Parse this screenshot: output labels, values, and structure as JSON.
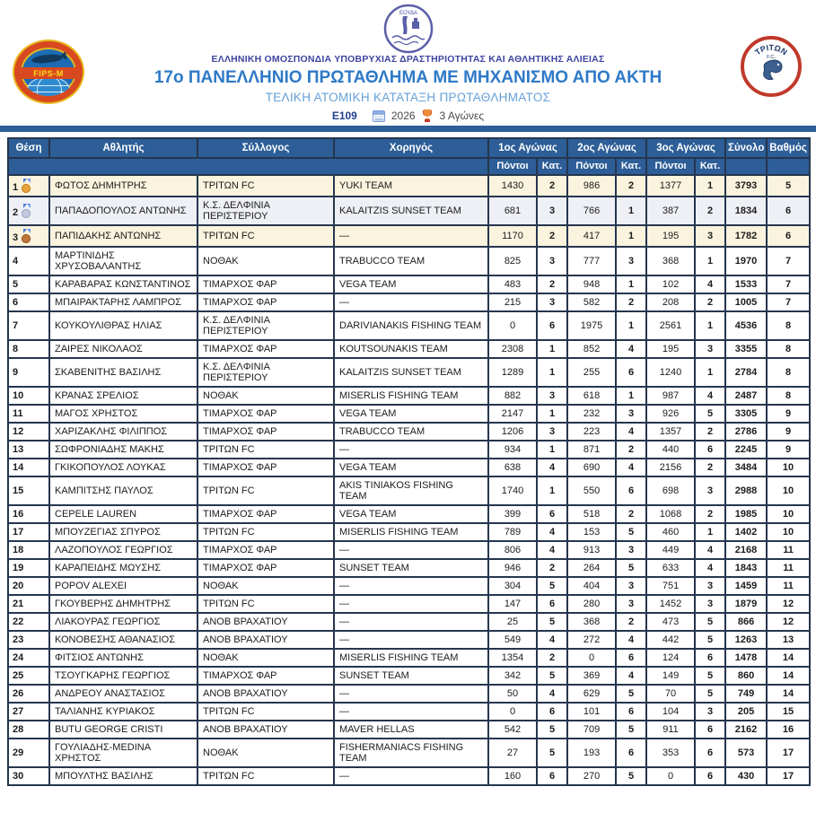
{
  "header": {
    "federation": "ΕΛΛΗΝΙΚΗ ΟΜΟΣΠΟΝΔΙΑ ΥΠΟΒΡΥΧΙΑΣ ΔΡΑΣΤΗΡΙΟΤΗΤΑΣ ΚΑΙ ΑΘΛΗΤΙΚΗΣ ΑΛΙΕΙΑΣ",
    "title": "17ο ΠΑΝΕΛΛΗΝΙΟ ΠΡΩΤΑΘΛΗΜΑ ΜΕ ΜΗΧΑΝΙΣΜΟ ΑΠΟ ΑΚΤΗ",
    "subtitle": "ΤΕΛΙΚΗ ΑΤΟΜΙΚΗ ΚΑΤΑΤΑΞΗ ΠΡΩΤΑΘΛΗΜΑΤΟΣ",
    "code": "E109",
    "year": "2026",
    "races": "3 Αγώνες",
    "logo_left_text": "FIPS-M",
    "logo_right_top": "ΤΡΙΤΩΝ",
    "logo_right_sub": "F.C."
  },
  "colors": {
    "header_blue": "#2d5e97",
    "title_blue": "#2e79c7",
    "subtitle_blue": "#64a0d8",
    "federation_indigo": "#3f45a0",
    "row_beige": "#faf3de",
    "row_gray": "#eef0f6",
    "border_dark": "#25364e"
  },
  "table": {
    "head": {
      "pos": "Θέση",
      "athlete": "Αθλητής",
      "club": "Σύλλογος",
      "sponsor": "Χορηγός",
      "race1": "1ος Αγώνας",
      "race2": "2ος Αγώνας",
      "race3": "3ος Αγώνας",
      "total": "Σύνολο",
      "grade": "Βαθμός",
      "points": "Πόντοι",
      "cat": "Κατ."
    },
    "rows": [
      {
        "pos": 1,
        "medal": "gold",
        "name": "ΦΩΤΟΣ ΔΗΜΗΤΡΗΣ",
        "club": "ΤΡΙΤΩΝ FC",
        "sponsor": "YUKI TEAM",
        "p1": 1430,
        "k1": 2,
        "p2": 986,
        "k2": 2,
        "p3": 1377,
        "k3": 1,
        "total": 3793,
        "grade": 5
      },
      {
        "pos": 2,
        "medal": "silver",
        "name": "ΠΑΠΑΔΟΠΟΥΛΟΣ ΑΝΤΩΝΗΣ",
        "club": "Κ.Σ. ΔΕΛΦΙΝΙΑ ΠΕΡΙΣΤΕΡΙΟΥ",
        "sponsor": "KALAITZIS SUNSET TEAM",
        "p1": 681,
        "k1": 3,
        "p2": 766,
        "k2": 1,
        "p3": 387,
        "k3": 2,
        "total": 1834,
        "grade": 6
      },
      {
        "pos": 3,
        "medal": "bronze",
        "name": "ΠΑΠΙΔΑΚΗΣ ΑΝΤΩΝΗΣ",
        "club": "ΤΡΙΤΩΝ FC",
        "sponsor": "—",
        "p1": 1170,
        "k1": 2,
        "p2": 417,
        "k2": 1,
        "p3": 195,
        "k3": 3,
        "total": 1782,
        "grade": 6
      },
      {
        "pos": 4,
        "medal": null,
        "name": "ΜΑΡΤΙΝΙΔΗΣ ΧΡΥΣΟΒΑΛΑΝΤΗΣ",
        "club": "ΝΟΘΑΚ",
        "sponsor": "TRABUCCO TEAM",
        "p1": 825,
        "k1": 3,
        "p2": 777,
        "k2": 3,
        "p3": 368,
        "k3": 1,
        "total": 1970,
        "grade": 7
      },
      {
        "pos": 5,
        "medal": null,
        "name": "ΚΑΡΑΒΑΡΑΣ ΚΩΝΣΤΑΝΤΙΝΟΣ",
        "club": "ΤΙΜΑΡΧΟΣ ΦΑΡ",
        "sponsor": "VEGA TEAM",
        "p1": 483,
        "k1": 2,
        "p2": 948,
        "k2": 1,
        "p3": 102,
        "k3": 4,
        "total": 1533,
        "grade": 7
      },
      {
        "pos": 6,
        "medal": null,
        "name": "ΜΠΑΙΡΑΚΤΑΡΗΣ ΛΑΜΠΡΟΣ",
        "club": "ΤΙΜΑΡΧΟΣ ΦΑΡ",
        "sponsor": "—",
        "p1": 215,
        "k1": 3,
        "p2": 582,
        "k2": 2,
        "p3": 208,
        "k3": 2,
        "total": 1005,
        "grade": 7
      },
      {
        "pos": 7,
        "medal": null,
        "name": "ΚΟΥΚΟΥΛΙΘΡΑΣ ΗΛΙΑΣ",
        "club": "Κ.Σ. ΔΕΛΦΙΝΙΑ ΠΕΡΙΣΤΕΡΙΟΥ",
        "sponsor": "DARIVIANAKIS FISHING TEAM",
        "p1": 0,
        "k1": 6,
        "p2": 1975,
        "k2": 1,
        "p3": 2561,
        "k3": 1,
        "total": 4536,
        "grade": 8
      },
      {
        "pos": 8,
        "medal": null,
        "name": "ΖΑΙΡΕΣ ΝΙΚΟΛΑΟΣ",
        "club": "ΤΙΜΑΡΧΟΣ ΦΑΡ",
        "sponsor": "KOUTSOUNAKIS TEAM",
        "p1": 2308,
        "k1": 1,
        "p2": 852,
        "k2": 4,
        "p3": 195,
        "k3": 3,
        "total": 3355,
        "grade": 8
      },
      {
        "pos": 9,
        "medal": null,
        "name": "ΣΚΑΒΕΝΙΤΗΣ ΒΑΣΙΛΗΣ",
        "club": "Κ.Σ. ΔΕΛΦΙΝΙΑ ΠΕΡΙΣΤΕΡΙΟΥ",
        "sponsor": "KALAITZIS SUNSET TEAM",
        "p1": 1289,
        "k1": 1,
        "p2": 255,
        "k2": 6,
        "p3": 1240,
        "k3": 1,
        "total": 2784,
        "grade": 8
      },
      {
        "pos": 10,
        "medal": null,
        "name": "ΚΡΑΝΑΣ ΣΡΕΛΙΟΣ",
        "club": "ΝΟΘΑΚ",
        "sponsor": "MISERLIS FISHING TEAM",
        "p1": 882,
        "k1": 3,
        "p2": 618,
        "k2": 1,
        "p3": 987,
        "k3": 4,
        "total": 2487,
        "grade": 8
      },
      {
        "pos": 11,
        "medal": null,
        "name": "ΜΑΓΟΣ ΧΡΗΣΤΟΣ",
        "club": "ΤΙΜΑΡΧΟΣ ΦΑΡ",
        "sponsor": "VEGA TEAM",
        "p1": 2147,
        "k1": 1,
        "p2": 232,
        "k2": 3,
        "p3": 926,
        "k3": 5,
        "total": 3305,
        "grade": 9
      },
      {
        "pos": 12,
        "medal": null,
        "name": "ΧΑΡΙΖΑΚΛΗΣ ΦΙΛΙΠΠΟΣ",
        "club": "ΤΙΜΑΡΧΟΣ ΦΑΡ",
        "sponsor": "TRABUCCO TEAM",
        "p1": 1206,
        "k1": 3,
        "p2": 223,
        "k2": 4,
        "p3": 1357,
        "k3": 2,
        "total": 2786,
        "grade": 9
      },
      {
        "pos": 13,
        "medal": null,
        "name": "ΣΩΦΡΟΝΙΑΔΗΣ ΜΑΚΗΣ",
        "club": "ΤΡΙΤΩΝ FC",
        "sponsor": "—",
        "p1": 934,
        "k1": 1,
        "p2": 871,
        "k2": 2,
        "p3": 440,
        "k3": 6,
        "total": 2245,
        "grade": 9
      },
      {
        "pos": 14,
        "medal": null,
        "name": "ΓΚΙΚΟΠΟΥΛΟΣ ΛΟΥΚΑΣ",
        "club": "ΤΙΜΑΡΧΟΣ ΦΑΡ",
        "sponsor": "VEGA TEAM",
        "p1": 638,
        "k1": 4,
        "p2": 690,
        "k2": 4,
        "p3": 2156,
        "k3": 2,
        "total": 3484,
        "grade": 10
      },
      {
        "pos": 15,
        "medal": null,
        "name": "ΚΑΜΠΙΤΣΗΣ ΠΑΥΛΟΣ",
        "club": "ΤΡΙΤΩΝ FC",
        "sponsor": "AKIS TINIAKOS FISHING TEAM",
        "p1": 1740,
        "k1": 1,
        "p2": 550,
        "k2": 6,
        "p3": 698,
        "k3": 3,
        "total": 2988,
        "grade": 10
      },
      {
        "pos": 16,
        "medal": null,
        "name": "CEPELE LAUREN",
        "club": "ΤΙΜΑΡΧΟΣ ΦΑΡ",
        "sponsor": "VEGA TEAM",
        "p1": 399,
        "k1": 6,
        "p2": 518,
        "k2": 2,
        "p3": 1068,
        "k3": 2,
        "total": 1985,
        "grade": 10
      },
      {
        "pos": 17,
        "medal": null,
        "name": "ΜΠΟΥΖΕΓΙΑΣ ΣΠΥΡΟΣ",
        "club": "ΤΡΙΤΩΝ FC",
        "sponsor": "MISERLIS FISHING TEAM",
        "p1": 789,
        "k1": 4,
        "p2": 153,
        "k2": 5,
        "p3": 460,
        "k3": 1,
        "total": 1402,
        "grade": 10
      },
      {
        "pos": 18,
        "medal": null,
        "name": "ΛΑΖΟΠΟΥΛΟΣ ΓΕΩΡΓΙΟΣ",
        "club": "ΤΙΜΑΡΧΟΣ ΦΑΡ",
        "sponsor": "—",
        "p1": 806,
        "k1": 4,
        "p2": 913,
        "k2": 3,
        "p3": 449,
        "k3": 4,
        "total": 2168,
        "grade": 11
      },
      {
        "pos": 19,
        "medal": null,
        "name": "ΚΑΡΑΠΕΙΔΗΣ ΜΩΥΣΗΣ",
        "club": "ΤΙΜΑΡΧΟΣ ΦΑΡ",
        "sponsor": "SUNSET TEAM",
        "p1": 946,
        "k1": 2,
        "p2": 264,
        "k2": 5,
        "p3": 633,
        "k3": 4,
        "total": 1843,
        "grade": 11
      },
      {
        "pos": 20,
        "medal": null,
        "name": "POPOV ALEXEI",
        "club": "ΝΟΘΑΚ",
        "sponsor": "—",
        "p1": 304,
        "k1": 5,
        "p2": 404,
        "k2": 3,
        "p3": 751,
        "k3": 3,
        "total": 1459,
        "grade": 11
      },
      {
        "pos": 21,
        "medal": null,
        "name": "ΓΚΟΥΒΕΡΗΣ ΔΗΜΗΤΡΗΣ",
        "club": "ΤΡΙΤΩΝ FC",
        "sponsor": "—",
        "p1": 147,
        "k1": 6,
        "p2": 280,
        "k2": 3,
        "p3": 1452,
        "k3": 3,
        "total": 1879,
        "grade": 12
      },
      {
        "pos": 22,
        "medal": null,
        "name": "ΛΙΑΚΟΥΡΑΣ ΓΕΩΡΓΙΟΣ",
        "club": "ΑΝΟΒ ΒΡΑΧΑΤΙΟΥ",
        "sponsor": "—",
        "p1": 25,
        "k1": 5,
        "p2": 368,
        "k2": 2,
        "p3": 473,
        "k3": 5,
        "total": 866,
        "grade": 12
      },
      {
        "pos": 23,
        "medal": null,
        "name": "ΚΟΝΟΒΕΣΗΣ ΑΘΑΝΑΣΙΟΣ",
        "club": "ΑΝΟΒ ΒΡΑΧΑΤΙΟΥ",
        "sponsor": "—",
        "p1": 549,
        "k1": 4,
        "p2": 272,
        "k2": 4,
        "p3": 442,
        "k3": 5,
        "total": 1263,
        "grade": 13
      },
      {
        "pos": 24,
        "medal": null,
        "name": "ΦΙΤΣΙΟΣ ΑΝΤΩΝΗΣ",
        "club": "ΝΟΘΑΚ",
        "sponsor": "MISERLIS FISHING TEAM",
        "p1": 1354,
        "k1": 2,
        "p2": 0,
        "k2": 6,
        "p3": 124,
        "k3": 6,
        "total": 1478,
        "grade": 14
      },
      {
        "pos": 25,
        "medal": null,
        "name": "ΤΣΟΥΓΚΑΡΗΣ ΓΕΩΡΓΙΟΣ",
        "club": "ΤΙΜΑΡΧΟΣ ΦΑΡ",
        "sponsor": "SUNSET TEAM",
        "p1": 342,
        "k1": 5,
        "p2": 369,
        "k2": 4,
        "p3": 149,
        "k3": 5,
        "total": 860,
        "grade": 14
      },
      {
        "pos": 26,
        "medal": null,
        "name": "ΑΝΔΡΕΟΥ ΑΝΑΣΤΑΣΙΟΣ",
        "club": "ΑΝΟΒ ΒΡΑΧΑΤΙΟΥ",
        "sponsor": "—",
        "p1": 50,
        "k1": 4,
        "p2": 629,
        "k2": 5,
        "p3": 70,
        "k3": 5,
        "total": 749,
        "grade": 14
      },
      {
        "pos": 27,
        "medal": null,
        "name": "ΤΑΛΙΑΝΗΣ ΚΥΡΙΑΚΟΣ",
        "club": "ΤΡΙΤΩΝ FC",
        "sponsor": "—",
        "p1": 0,
        "k1": 6,
        "p2": 101,
        "k2": 6,
        "p3": 104,
        "k3": 3,
        "total": 205,
        "grade": 15
      },
      {
        "pos": 28,
        "medal": null,
        "name": "BUTU GEORGE CRISTI",
        "club": "ΑΝΟΒ ΒΡΑΧΑΤΙΟΥ",
        "sponsor": "MAVER HELLAS",
        "p1": 542,
        "k1": 5,
        "p2": 709,
        "k2": 5,
        "p3": 911,
        "k3": 6,
        "total": 2162,
        "grade": 16
      },
      {
        "pos": 29,
        "medal": null,
        "name": "ΓΟΥΛΙΑΔΗΣ-MEDINA ΧΡΗΣΤΟΣ",
        "club": "ΝΟΘΑΚ",
        "sponsor": "FISHERMANIACS FISHING TEAM",
        "p1": 27,
        "k1": 5,
        "p2": 193,
        "k2": 6,
        "p3": 353,
        "k3": 6,
        "total": 573,
        "grade": 17
      },
      {
        "pos": 30,
        "medal": null,
        "name": "ΜΠΟΥΛΤΗΣ ΒΑΣΙΛΗΣ",
        "club": "ΤΡΙΤΩΝ FC",
        "sponsor": "—",
        "p1": 160,
        "k1": 6,
        "p2": 270,
        "k2": 5,
        "p3": 0,
        "k3": 6,
        "total": 430,
        "grade": 17
      }
    ]
  }
}
